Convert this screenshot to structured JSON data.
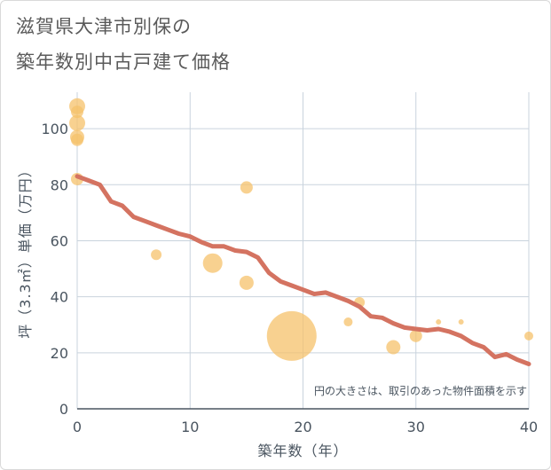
{
  "title_line1": "滋賀県大津市別保の",
  "title_line2": "築年数別中古戸建て価格",
  "chart_data": {
    "type": "scatter",
    "xlabel": "築年数（年）",
    "ylabel": "坪（3.3㎡）単価（万円）",
    "xlim": [
      0,
      40
    ],
    "ylim": [
      0,
      113
    ],
    "xticks": [
      0,
      10,
      20,
      30,
      40
    ],
    "yticks": [
      0,
      20,
      40,
      60,
      80,
      100
    ],
    "grid": true,
    "note": "円の大きさは、取引のあった物件面積を示す",
    "bubbles": [
      {
        "x": 0,
        "y": 108,
        "r": 9
      },
      {
        "x": 0,
        "y": 106,
        "r": 7
      },
      {
        "x": 0,
        "y": 102,
        "r": 9
      },
      {
        "x": 0,
        "y": 97,
        "r": 8
      },
      {
        "x": 0,
        "y": 96,
        "r": 7
      },
      {
        "x": 0,
        "y": 82,
        "r": 7
      },
      {
        "x": 7,
        "y": 55,
        "r": 6
      },
      {
        "x": 12,
        "y": 52,
        "r": 11
      },
      {
        "x": 15,
        "y": 79,
        "r": 7
      },
      {
        "x": 15,
        "y": 45,
        "r": 8
      },
      {
        "x": 19,
        "y": 26,
        "r": 28
      },
      {
        "x": 24,
        "y": 31,
        "r": 5
      },
      {
        "x": 25,
        "y": 38,
        "r": 6
      },
      {
        "x": 28,
        "y": 22,
        "r": 8
      },
      {
        "x": 30,
        "y": 26,
        "r": 7
      },
      {
        "x": 32,
        "y": 31,
        "r": 3
      },
      {
        "x": 34,
        "y": 31,
        "r": 3
      },
      {
        "x": 40,
        "y": 26,
        "r": 5
      }
    ],
    "bubble_color": "#f5c26b",
    "trend": {
      "color": "#d47361",
      "x": [
        0,
        1,
        2,
        3,
        4,
        5,
        6,
        7,
        8,
        9,
        10,
        11,
        12,
        13,
        14,
        15,
        16,
        17,
        18,
        19,
        20,
        21,
        22,
        23,
        24,
        25,
        26,
        27,
        28,
        29,
        30,
        31,
        32,
        33,
        34,
        35,
        36,
        37,
        38,
        39,
        40
      ],
      "y": [
        83,
        81.5,
        80,
        74,
        72.5,
        68.5,
        67,
        65.5,
        64,
        62.5,
        61.5,
        59.5,
        58,
        58,
        56.5,
        56,
        54,
        48.5,
        45.5,
        44,
        42.5,
        41,
        41.5,
        40,
        38.5,
        36.5,
        33,
        32.5,
        30.5,
        29,
        28.5,
        28,
        28.5,
        27.5,
        26,
        23.5,
        22,
        18.5,
        19.5,
        17.5,
        16
      ]
    }
  }
}
